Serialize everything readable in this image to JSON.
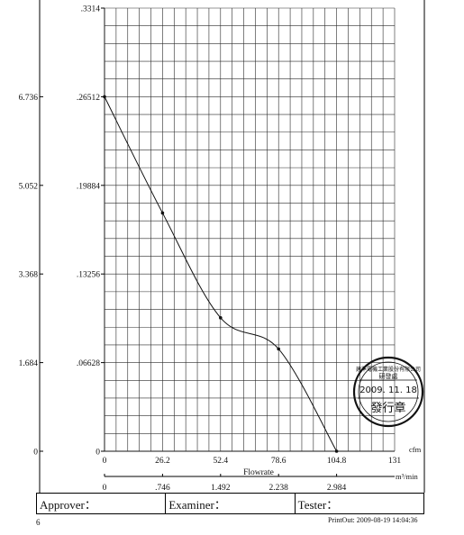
{
  "chart_data": {
    "type": "line",
    "title": "",
    "x_primary": {
      "unit": "cfm",
      "ticks": [
        "0",
        "26.2",
        "52.4",
        "78.6",
        "104.8",
        "131"
      ],
      "range": [
        0,
        131
      ]
    },
    "x_secondary": {
      "unit": "m³/min",
      "ticks": [
        "0",
        ".746",
        "1.492",
        "2.238",
        "2.984"
      ]
    },
    "xlabel": "Flowrate",
    "y_primary": {
      "ticks": [
        "0",
        ".06628",
        ".13256",
        ".19884",
        ".26512",
        ".3314"
      ],
      "range": [
        0,
        0.3314
      ]
    },
    "y_secondary": {
      "ticks": [
        "0",
        "1.684",
        "3.368",
        "5.052",
        "6.736"
      ]
    },
    "grid": true,
    "series": [
      {
        "x": [
          0,
          26.2,
          52.4,
          78.6,
          104.8
        ],
        "y": [
          0.26512,
          0.1782,
          0.0998,
          0.0765,
          0
        ],
        "markers": true
      }
    ]
  },
  "signoff": {
    "approver": "Approver：",
    "examiner": "Examiner：",
    "tester": "Tester："
  },
  "footer": {
    "page_number": "6",
    "printout": "PrintOut: 2009-08-19  14:04:36"
  },
  "stamp": {
    "line_top": "建準電機工業股份有限公司",
    "line_dept": "研發處",
    "date": "2009. 11. 18",
    "line_bottom": "發行章"
  }
}
